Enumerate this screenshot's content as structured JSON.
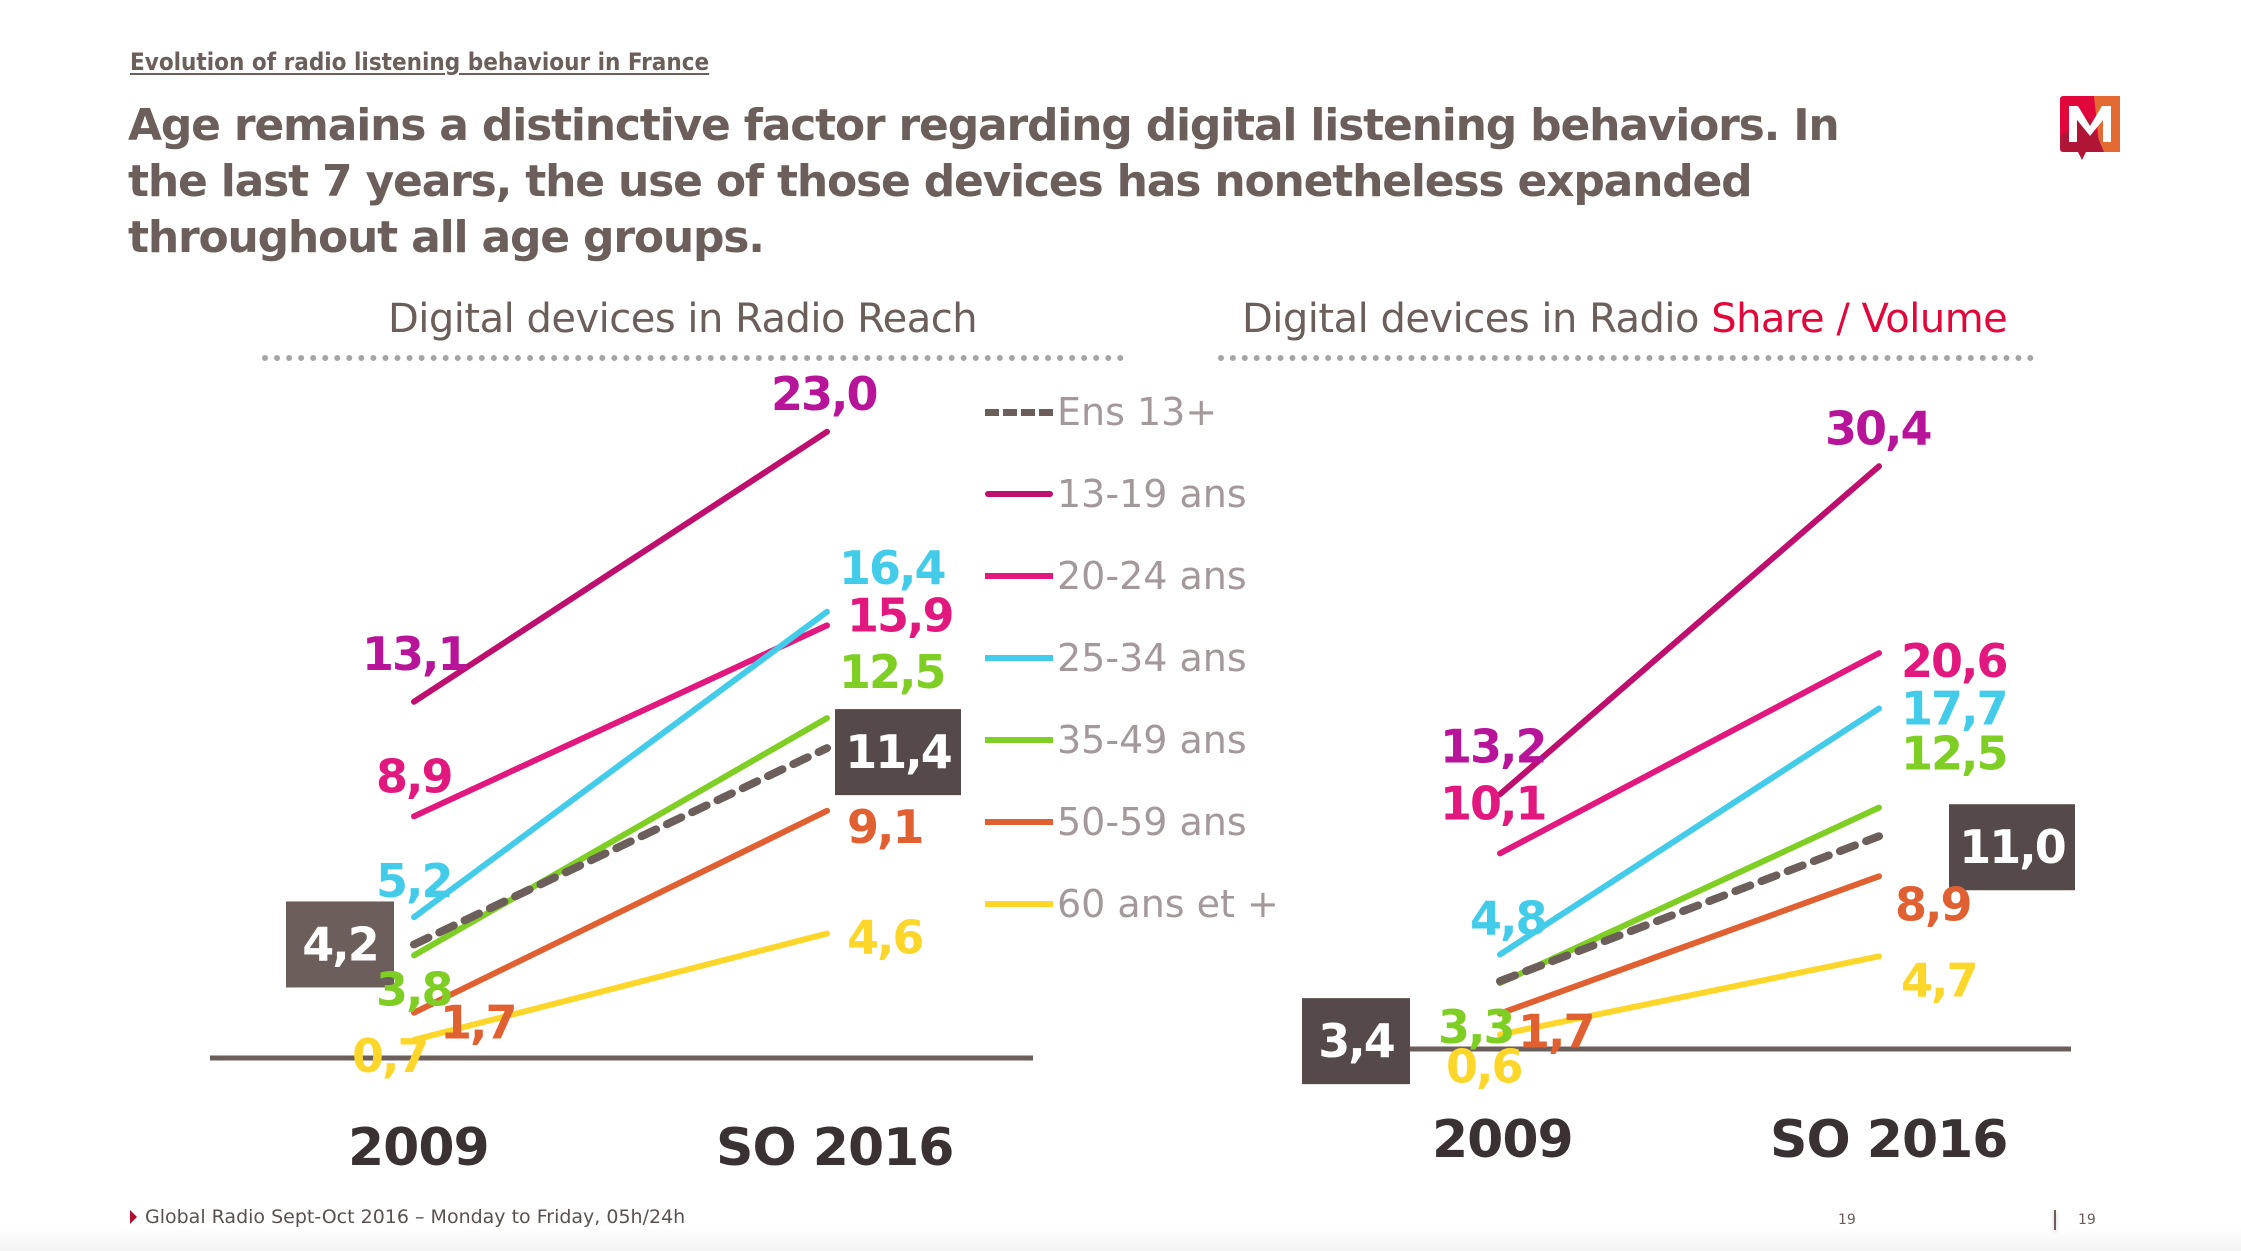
{
  "header": {
    "kicker": "Evolution of radio listening behaviour in France",
    "headline": "Age remains a distinctive factor regarding digital listening behaviors. In the last 7 years, the use of those devices has nonetheless expanded throughout all age groups.",
    "logo_icon": "m-logo-icon"
  },
  "legend": {
    "items": [
      {
        "label": "Ens 13+",
        "color": "#6b5e5b",
        "style": "dashed"
      },
      {
        "label": "13-19 ans",
        "color": "#be0f6e",
        "style": "solid"
      },
      {
        "label": "20-24 ans",
        "color": "#e2187f",
        "style": "solid"
      },
      {
        "label": "25-34 ans",
        "color": "#43cce9",
        "style": "solid"
      },
      {
        "label": "35-49 ans",
        "color": "#7fce23",
        "style": "solid"
      },
      {
        "label": "50-59 ans",
        "color": "#e06031",
        "style": "solid"
      },
      {
        "label": "60 ans et +",
        "color": "#fdd62a",
        "style": "solid"
      }
    ]
  },
  "chart_data": [
    {
      "type": "line",
      "title": "Digital devices in Radio Reach",
      "title_accent": "",
      "categories": [
        "2009",
        "SO 2016"
      ],
      "ylim": [
        0,
        25
      ],
      "grid": false,
      "legend_position": "right",
      "series": [
        {
          "name": "Ens 13+",
          "values": [
            4.2,
            11.4
          ],
          "labels": [
            "4,2",
            "11,4"
          ],
          "highlight": true
        },
        {
          "name": "13-19 ans",
          "values": [
            13.1,
            23.0
          ],
          "labels": [
            "13,1",
            "23,0"
          ]
        },
        {
          "name": "20-24 ans",
          "values": [
            8.9,
            15.9
          ],
          "labels": [
            "8,9",
            "15,9"
          ]
        },
        {
          "name": "25-34 ans",
          "values": [
            5.2,
            16.4
          ],
          "labels": [
            "5,2",
            "16,4"
          ]
        },
        {
          "name": "35-49 ans",
          "values": [
            3.8,
            12.5
          ],
          "labels": [
            "3,8",
            "12,5"
          ]
        },
        {
          "name": "50-59 ans",
          "values": [
            1.7,
            9.1
          ],
          "labels": [
            "1,7",
            "9,1"
          ]
        },
        {
          "name": "60 ans et +",
          "values": [
            0.7,
            4.6
          ],
          "labels": [
            "0,7",
            "4,6"
          ]
        }
      ]
    },
    {
      "type": "line",
      "title": "Digital devices in Radio ",
      "title_accent": "Share / Volume",
      "categories": [
        "2009",
        "SO 2016"
      ],
      "ylim": [
        0,
        32
      ],
      "grid": false,
      "legend_position": "none",
      "series": [
        {
          "name": "Ens 13+",
          "values": [
            3.4,
            11.0
          ],
          "labels": [
            "3,4",
            "11,0"
          ],
          "highlight": true
        },
        {
          "name": "13-19 ans",
          "values": [
            13.2,
            30.4
          ],
          "labels": [
            "13,2",
            "30,4"
          ]
        },
        {
          "name": "20-24 ans",
          "values": [
            10.1,
            20.6
          ],
          "labels": [
            "10,1",
            "20,6"
          ]
        },
        {
          "name": "25-34 ans",
          "values": [
            4.8,
            17.7
          ],
          "labels": [
            "4,8",
            "17,7"
          ]
        },
        {
          "name": "35-49 ans",
          "values": [
            3.3,
            12.5
          ],
          "labels": [
            "3,3",
            "12,5"
          ]
        },
        {
          "name": "50-59 ans",
          "values": [
            1.7,
            8.9
          ],
          "labels": [
            "1,7",
            "8,9"
          ]
        },
        {
          "name": "60 ans et +",
          "values": [
            0.6,
            4.7
          ],
          "labels": [
            "0,6",
            "4,7"
          ]
        }
      ]
    }
  ],
  "footer": {
    "source": "Global Radio Sept-Oct 2016 – Monday to Friday, 05h/24h",
    "page_left": "19",
    "page_right": "19"
  }
}
